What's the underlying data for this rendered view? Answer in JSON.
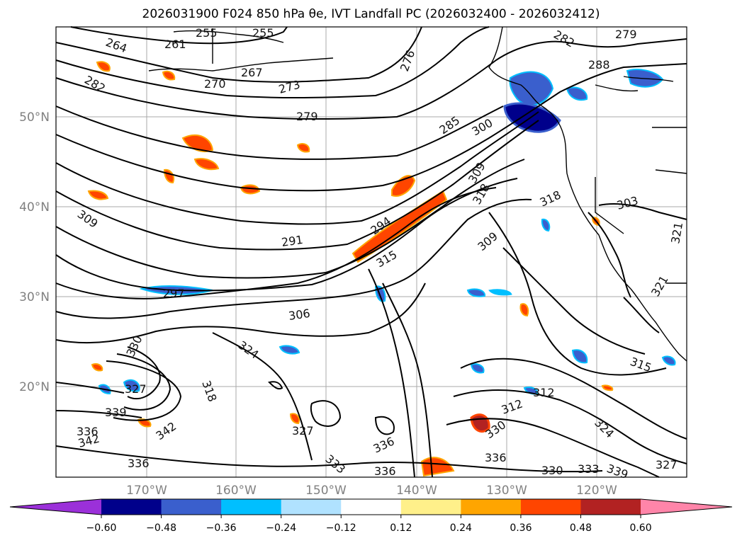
{
  "title": "2026031900 F024 850 hPa θe, IVT Landfall PC (2026032400 - 2026032412)",
  "map": {
    "lat_labels": [
      "50°N",
      "40°N",
      "30°N",
      "20°N"
    ],
    "lon_labels": [
      "170°W",
      "160°W",
      "150°W",
      "140°W",
      "130°W",
      "120°W"
    ],
    "contour_labels": [
      "264",
      "261",
      "255",
      "255",
      "267",
      "270",
      "273",
      "276",
      "282",
      "282",
      "279",
      "288",
      "279",
      "285",
      "300",
      "309",
      "309",
      "318",
      "291",
      "294",
      "315",
      "309",
      "297",
      "306",
      "318",
      "303",
      "321",
      "321",
      "324",
      "330",
      "327",
      "318",
      "339",
      "336",
      "342",
      "342",
      "327",
      "336",
      "333",
      "336",
      "336",
      "330",
      "333",
      "336",
      "339",
      "324",
      "312",
      "327",
      "312",
      "315",
      "330"
    ]
  },
  "colorbar": {
    "ticks": [
      "−0.60",
      "−0.48",
      "−0.36",
      "−0.24",
      "−0.12",
      "0.12",
      "0.24",
      "0.36",
      "0.48",
      "0.60"
    ],
    "colors": {
      "under": "#9b30d9",
      "bins": [
        "#00008b",
        "#3a5fcd",
        "#00bfff",
        "#b0e2ff",
        "#ffffff",
        "#fff08a",
        "#ffa500",
        "#ff4500",
        "#b22222"
      ],
      "over": "#ff85a9"
    }
  }
}
